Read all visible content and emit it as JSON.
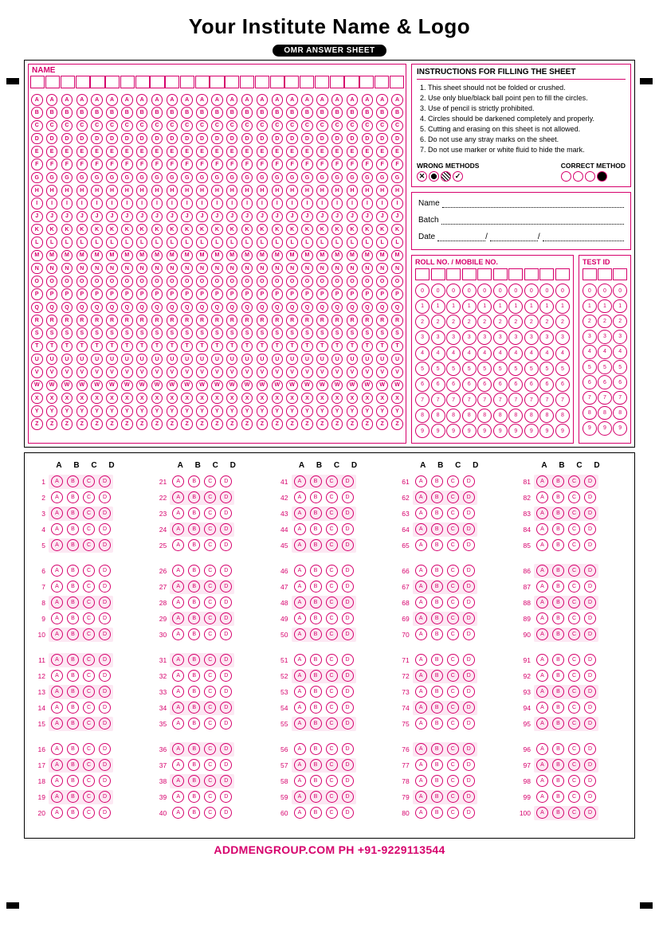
{
  "colors": {
    "primary": "#d6006c",
    "shade_bg": "#fce8f3",
    "black": "#000000"
  },
  "title": "Your Institute Name & Logo",
  "subtitle": "OMR ANSWER SHEET",
  "name_label": "NAME",
  "name_cols": 25,
  "alphabet": [
    "A",
    "B",
    "C",
    "D",
    "E",
    "F",
    "G",
    "H",
    "I",
    "J",
    "K",
    "L",
    "M",
    "N",
    "O",
    "P",
    "Q",
    "R",
    "S",
    "T",
    "U",
    "V",
    "W",
    "X",
    "Y",
    "Z"
  ],
  "instr_title": "INSTRUCTIONS FOR FILLING THE SHEET",
  "instructions": [
    "This sheet should not be folded or crushed.",
    "Use only blue/black ball point pen to fill the circles.",
    "Use of pencil is strictly prohibited.",
    "Circles should be darkened completely and properly.",
    "Cutting and erasing on this sheet is not allowed.",
    "Do not use any stray marks on the sheet.",
    "Do not use marker or white fluid to hide the mark."
  ],
  "wrong_label": "WRONG METHODS",
  "correct_label": "CORRECT METHOD",
  "info_fields": {
    "name": "Name",
    "batch": "Batch",
    "date": "Date"
  },
  "roll_title": "ROLL NO. / MOBILE NO.",
  "roll_cols": 10,
  "test_title": "TEST ID",
  "test_cols": 3,
  "digits": [
    "0",
    "1",
    "2",
    "3",
    "4",
    "5",
    "6",
    "7",
    "8",
    "9"
  ],
  "answers": {
    "options": [
      "A",
      "B",
      "C",
      "D"
    ],
    "total": 100,
    "cols": 5,
    "block_size": 5,
    "shaded_rows": [
      1,
      3,
      5,
      8,
      10,
      11,
      13,
      15,
      17,
      19,
      22,
      24,
      27,
      29,
      31,
      34,
      36,
      38,
      41,
      43,
      45,
      48,
      50,
      52,
      55,
      57,
      59,
      62,
      64,
      67,
      69,
      72,
      74,
      76,
      79,
      81,
      83,
      86,
      88,
      90,
      93,
      95,
      97,
      100
    ]
  },
  "footer": "ADDMENGROUP.COM    PH +91-9229113544"
}
